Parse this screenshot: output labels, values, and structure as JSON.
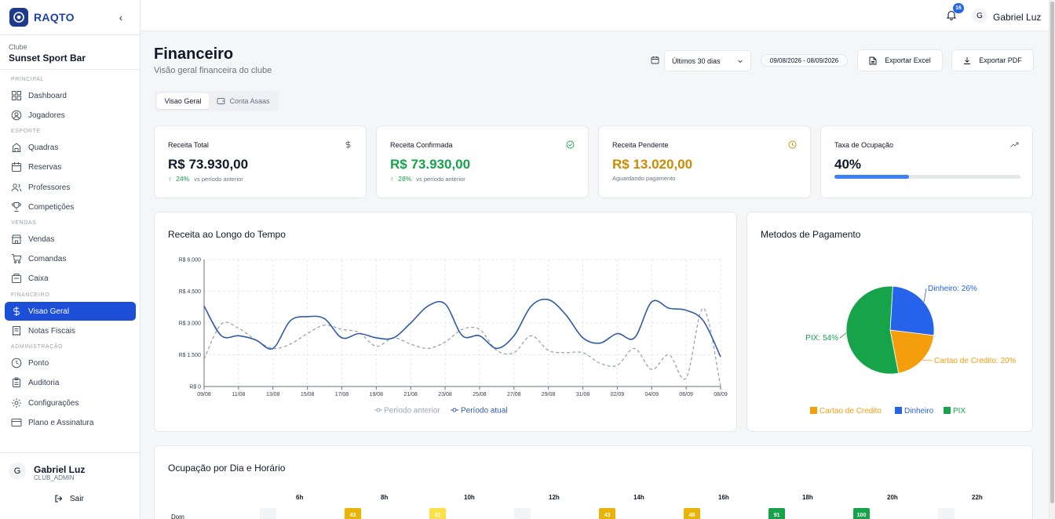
{
  "brand": {
    "name": "RAQTO"
  },
  "club": {
    "label": "Clube",
    "name": "Sunset Sport Bar"
  },
  "sidebar": {
    "sections": [
      {
        "title": "PRINCIPAL",
        "items": [
          {
            "label": "Dashboard",
            "icon": "grid-icon"
          },
          {
            "label": "Jogadores",
            "icon": "user-circle-icon"
          }
        ]
      },
      {
        "title": "ESPORTE",
        "items": [
          {
            "label": "Quadras",
            "icon": "building-icon"
          },
          {
            "label": "Reservas",
            "icon": "calendar-icon"
          },
          {
            "label": "Professores",
            "icon": "users-icon"
          },
          {
            "label": "Competições",
            "icon": "trophy-icon"
          }
        ]
      },
      {
        "title": "VENDAS",
        "items": [
          {
            "label": "Vendas",
            "icon": "store-icon"
          },
          {
            "label": "Comandas",
            "icon": "cart-icon"
          },
          {
            "label": "Caixa",
            "icon": "register-icon"
          }
        ]
      },
      {
        "title": "FINANCEIRO",
        "items": [
          {
            "label": "Visao Geral",
            "icon": "dollar-icon",
            "active": true
          },
          {
            "label": "Notas Fiscais",
            "icon": "receipt-icon"
          }
        ]
      },
      {
        "title": "ADMINISTRAÇÃO",
        "items": [
          {
            "label": "Ponto",
            "icon": "clock-icon"
          },
          {
            "label": "Auditoria",
            "icon": "clipboard-icon"
          },
          {
            "label": "Configurações",
            "icon": "gear-icon"
          },
          {
            "label": "Plano e Assinatura",
            "icon": "credit-card-icon"
          }
        ]
      }
    ]
  },
  "user": {
    "initial": "G",
    "name": "Gabriel Luz",
    "role": "CLUB_ADMIN",
    "logout_label": "Sair"
  },
  "topbar": {
    "notifications_count": "16",
    "avatar_initial": "G",
    "user_name": "Gabriel Luz"
  },
  "header": {
    "title": "Financeiro",
    "subtitle": "Visão geral financeira do clube",
    "period_select": "Últimos 30 dias",
    "date_range": "09/08/2026 - 08/09/2026",
    "export_excel": "Exportar Excel",
    "export_pdf": "Exportar PDF"
  },
  "tabs": [
    {
      "label": "Visao Geral",
      "active": true
    },
    {
      "label": "Conta Asaas",
      "active": false
    }
  ],
  "kpis": [
    {
      "title": "Receita Total",
      "value": "R$ 73.930,00",
      "change": "24%",
      "change_note": "vs período anterior",
      "icon": "dollar-icon",
      "color": "#111827"
    },
    {
      "title": "Receita Confirmada",
      "value": "R$ 73.930,00",
      "change": "28%",
      "change_note": "vs período anterior",
      "icon": "check-circle-icon",
      "color": "#16a34a"
    },
    {
      "title": "Receita Pendente",
      "value": "R$ 13.020,00",
      "note": "Aguardando pagamento",
      "icon": "clock-icon",
      "color": "#ca8a04"
    },
    {
      "title": "Taxa de Ocupação",
      "value": "40%",
      "progress": 0.4,
      "icon": "trending-up-icon",
      "color": "#111827"
    }
  ],
  "revenue_chart": {
    "title": "Receita ao Longo do Tempo",
    "legend": {
      "previous": "Período anterior",
      "current": "Período atual"
    },
    "colors": {
      "previous": "#9ca3af",
      "current": "#2f5aa8"
    }
  },
  "payment_chart": {
    "title": "Metodos de Pagamento",
    "colors": {
      "Dinheiro": "#2563eb",
      "PIX": "#16a34a",
      "Cartao de Credito": "#f59e0b"
    }
  },
  "occupancy": {
    "title": "Ocupação por Dia e Horário",
    "hours": [
      "6h",
      "8h",
      "10h",
      "12h",
      "14h",
      "16h",
      "18h",
      "20h",
      "22h"
    ],
    "rows": [
      {
        "day": "Dom",
        "cells": [
          {
            "value": ""
          },
          {
            "value": "43",
            "color": "#eab308"
          },
          {
            "value": "31",
            "color": "#fde047"
          },
          {
            "value": ""
          },
          {
            "value": "43",
            "color": "#eab308"
          },
          {
            "value": "48",
            "color": "#eab308"
          },
          {
            "value": "91",
            "color": "#16a34a"
          },
          {
            "value": "100",
            "color": "#16a34a"
          },
          {
            "value": ""
          }
        ]
      }
    ]
  },
  "chart_data": [
    {
      "type": "line",
      "title": "Receita ao Longo do Tempo",
      "x": [
        "09/08",
        "10/08",
        "11/08",
        "12/08",
        "13/08",
        "14/08",
        "15/08",
        "16/08",
        "17/08",
        "18/08",
        "19/08",
        "20/08",
        "21/08",
        "22/08",
        "23/08",
        "24/08",
        "25/08",
        "26/08",
        "27/08",
        "28/08",
        "29/08",
        "30/08",
        "31/08",
        "01/09",
        "02/09",
        "03/09",
        "04/09",
        "05/09",
        "06/09",
        "07/09",
        "08/09"
      ],
      "x_tick_labels": [
        "09/08",
        "11/08",
        "13/08",
        "15/08",
        "17/08",
        "19/08",
        "21/08",
        "23/08",
        "25/08",
        "27/08",
        "29/08",
        "31/08",
        "02/09",
        "04/09",
        "06/09",
        "08/09"
      ],
      "y_tick_labels": [
        "R$ 0",
        "R$ 1.500",
        "R$ 3.000",
        "R$ 4.500",
        "R$ 6.000"
      ],
      "ylim": [
        0,
        6000
      ],
      "grid": true,
      "legend_position": "bottom",
      "series": [
        {
          "name": "Período anterior",
          "style": "dashed",
          "values": [
            1300,
            2950,
            2750,
            2200,
            1800,
            2000,
            2500,
            2900,
            2700,
            2550,
            1900,
            2300,
            2000,
            1800,
            2100,
            2700,
            2700,
            1700,
            1600,
            2400,
            1700,
            1600,
            1600,
            1100,
            1000,
            1800,
            800,
            1500,
            400,
            3700,
            0
          ]
        },
        {
          "name": "Período atual",
          "values": [
            3800,
            2400,
            2400,
            2200,
            1800,
            3100,
            3300,
            3200,
            2300,
            2500,
            2300,
            2300,
            3000,
            3800,
            3900,
            2400,
            2400,
            1800,
            2400,
            3800,
            4100,
            3400,
            2300,
            2050,
            2500,
            2300,
            4000,
            3700,
            3600,
            3100,
            1400
          ]
        }
      ]
    },
    {
      "type": "pie",
      "title": "Metodos de Pagamento",
      "legend_position": "bottom",
      "slices": [
        {
          "name": "Dinheiro",
          "value": 26,
          "label": "Dinheiro: 26%"
        },
        {
          "name": "Cartao de Credito",
          "value": 20,
          "label": "Cartao de Credito: 20%"
        },
        {
          "name": "PIX",
          "value": 54,
          "label": "PIX: 54%"
        }
      ],
      "legend": [
        "Cartao de Credito",
        "Dinheiro",
        "PIX"
      ]
    }
  ]
}
